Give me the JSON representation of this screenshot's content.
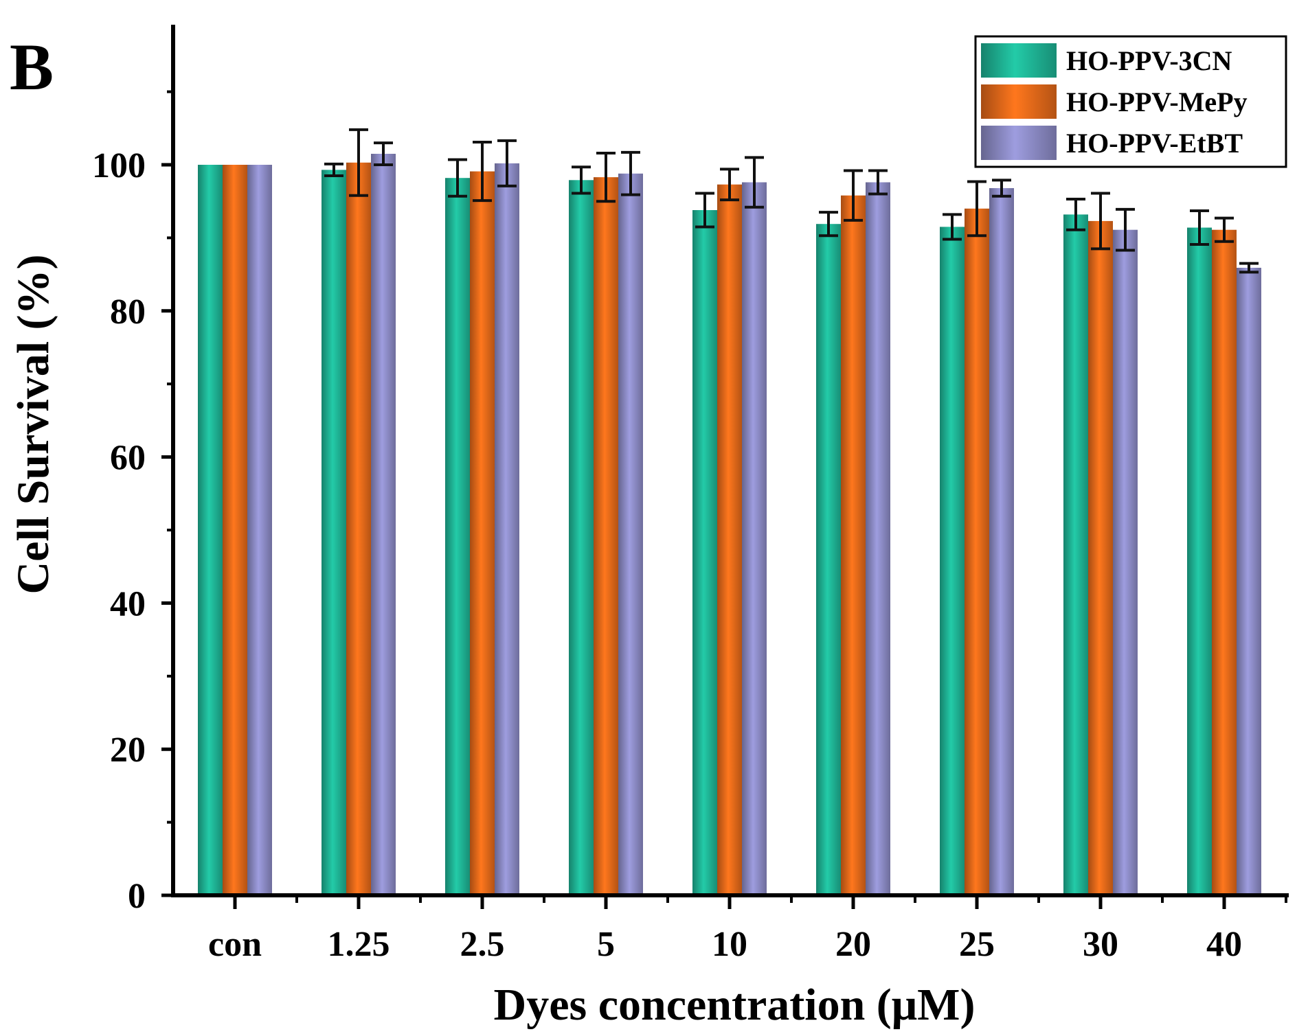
{
  "panel_label": "B",
  "chart_data": {
    "type": "bar",
    "xlabel": "Dyes concentration (μM)",
    "ylabel": "Cell Survival (%)",
    "ylim": [
      0,
      120
    ],
    "yticks": [
      0,
      20,
      40,
      60,
      80,
      100
    ],
    "ytick_labels": [
      "0",
      "20",
      "40",
      "60",
      "80",
      "100"
    ],
    "categories": [
      "con",
      "1.25",
      "2.5",
      "5",
      "10",
      "20",
      "25",
      "30",
      "40"
    ],
    "legend_position": "top-right",
    "series": [
      {
        "name": "HO-PPV-3CN",
        "color": "#1fb596",
        "values": [
          100,
          99.3,
          98.2,
          97.9,
          93.8,
          91.9,
          91.5,
          93.2,
          91.4
        ],
        "errors": [
          0,
          0.8,
          2.5,
          1.8,
          2.3,
          1.6,
          1.7,
          2.1,
          2.3
        ]
      },
      {
        "name": "HO-PPV-MePy",
        "color": "#e76a1a",
        "values": [
          100,
          100.3,
          99.1,
          98.3,
          97.3,
          95.8,
          94.0,
          92.3,
          91.1
        ],
        "errors": [
          0,
          4.5,
          4.0,
          3.3,
          2.1,
          3.4,
          3.7,
          3.8,
          1.6
        ]
      },
      {
        "name": "HO-PPV-EtBT",
        "color": "#8d8cc7",
        "values": [
          100,
          101.5,
          100.2,
          98.8,
          97.6,
          97.6,
          96.8,
          91.1,
          85.9
        ],
        "errors": [
          0,
          1.5,
          3.1,
          2.9,
          3.4,
          1.6,
          1.1,
          2.8,
          0.6
        ]
      }
    ]
  }
}
